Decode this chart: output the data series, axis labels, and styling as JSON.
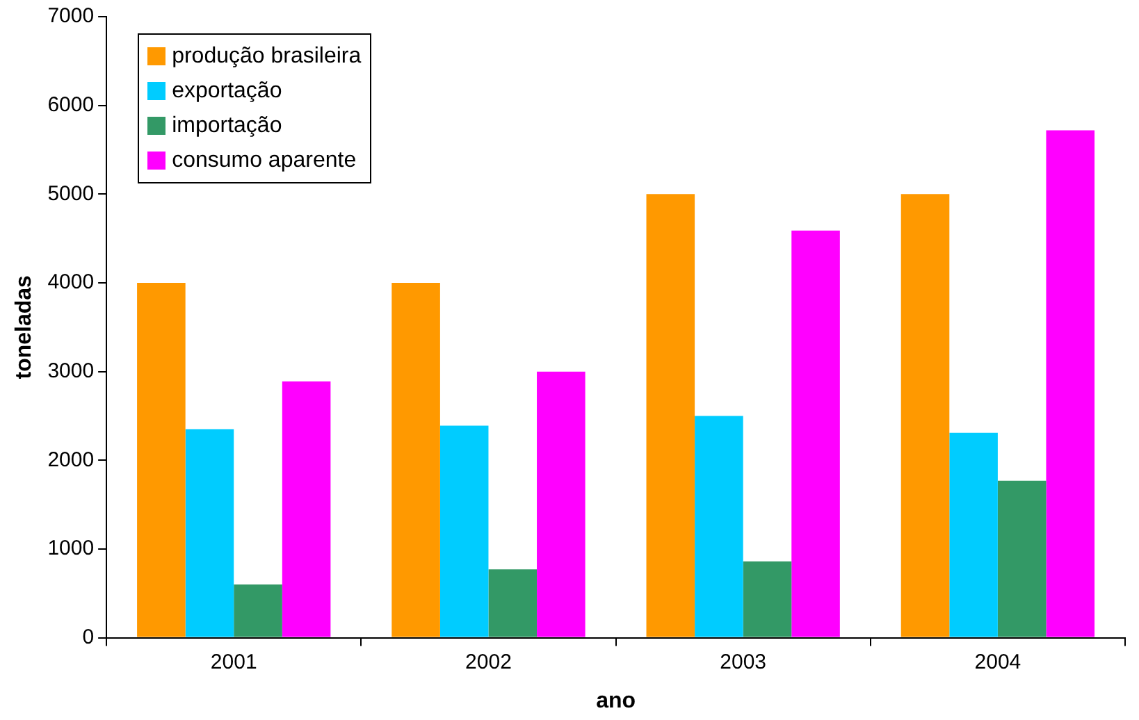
{
  "chart_data": {
    "type": "bar",
    "xlabel": "ano",
    "ylabel": "toneladas",
    "categories": [
      "2001",
      "2002",
      "2003",
      "2004"
    ],
    "series": [
      {
        "name": "produção brasileira",
        "color": "#ff9900",
        "values": [
          4000,
          4000,
          5000,
          5000
        ]
      },
      {
        "name": "exportação",
        "color": "#00ccff",
        "values": [
          2350,
          2390,
          2500,
          2310
        ]
      },
      {
        "name": "importação",
        "color": "#339966",
        "values": [
          600,
          770,
          860,
          1770
        ]
      },
      {
        "name": "consumo aparente",
        "color": "#ff00ff",
        "values": [
          2890,
          3000,
          4590,
          5720
        ]
      }
    ],
    "ylim": [
      0,
      7000
    ],
    "yticks": [
      0,
      1000,
      2000,
      3000,
      4000,
      5000,
      6000,
      7000
    ],
    "grid": false,
    "legend": "top left"
  }
}
